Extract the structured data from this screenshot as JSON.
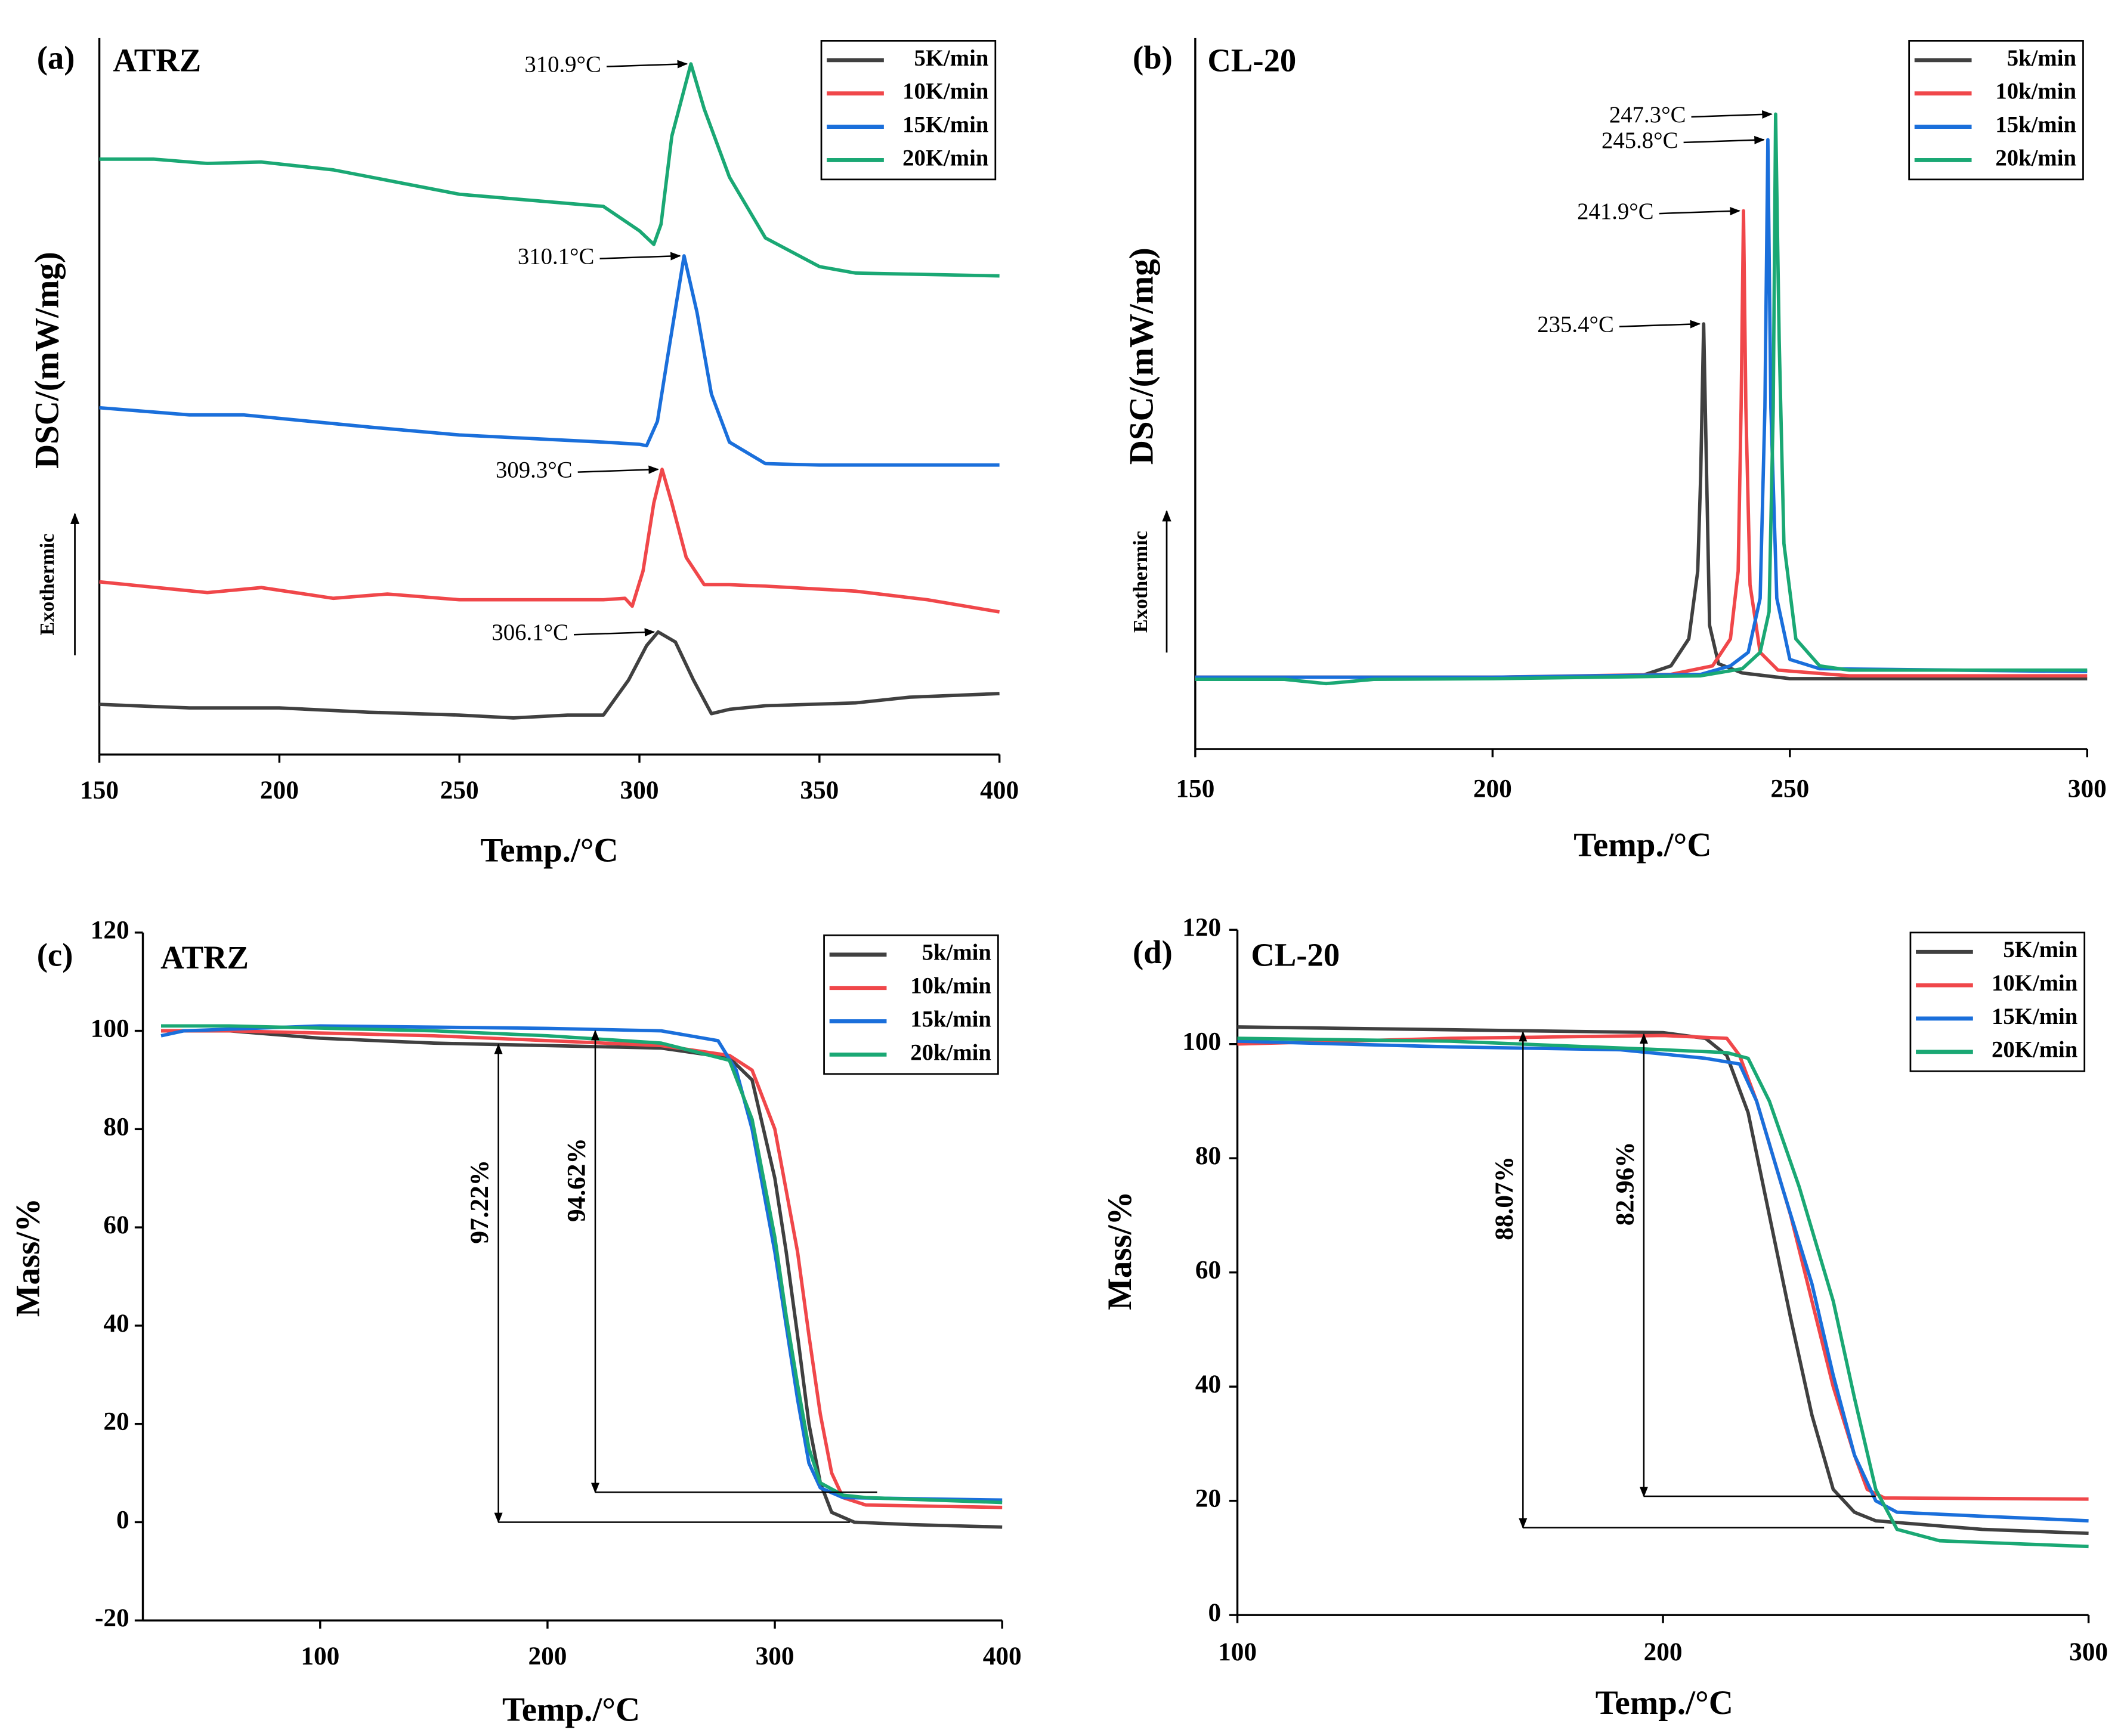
{
  "chart_data": [
    {
      "type": "line",
      "panel": "(a)",
      "title": "ATRZ",
      "xlabel": "Temp./°C",
      "ylabel": "DSC/(mW/mg)",
      "side_note": "Exothermic",
      "xlim": [
        150,
        400
      ],
      "xticks": [
        150,
        200,
        250,
        300,
        350,
        400
      ],
      "ylim": [
        0,
        100
      ],
      "legend": "upper right",
      "series": [
        {
          "name": "5K/min",
          "color": "#404040",
          "x": [
            150,
            175,
            200,
            225,
            250,
            265,
            280,
            290,
            297,
            302,
            305.2,
            310,
            315,
            320,
            325,
            335,
            360,
            375,
            400
          ],
          "values": [
            7.0,
            6.5,
            6.5,
            5.9,
            5.5,
            5.1,
            5.5,
            5.5,
            10.4,
            15.2,
            17.1,
            15.7,
            10.4,
            5.7,
            6.3,
            6.8,
            7.2,
            8.0,
            8.5
          ]
        },
        {
          "name": "10K/min",
          "color": "#f0474a",
          "x": [
            150,
            170,
            180,
            195,
            215,
            230,
            250,
            290,
            296,
            298,
            301,
            304,
            306.3,
            309,
            313,
            318,
            325,
            335,
            360,
            380,
            400
          ],
          "values": [
            24.1,
            23.1,
            22.6,
            23.3,
            21.8,
            22.4,
            21.6,
            21.6,
            21.8,
            20.7,
            25.6,
            35.1,
            39.8,
            35.1,
            27.5,
            23.7,
            23.7,
            23.5,
            22.8,
            21.6,
            19.9
          ]
        },
        {
          "name": "15K/min",
          "color": "#1a6fdb",
          "x": [
            150,
            175,
            190,
            225,
            250,
            290,
            300,
            302,
            305,
            308,
            312.4,
            316,
            320,
            325,
            335,
            350,
            400
          ],
          "values": [
            48.4,
            47.4,
            47.4,
            45.7,
            44.6,
            43.6,
            43.3,
            43.1,
            46.5,
            56.0,
            69.6,
            61.7,
            50.3,
            43.6,
            40.6,
            40.4,
            40.4
          ]
        },
        {
          "name": "20K/min",
          "color": "#1aa874",
          "x": [
            150,
            165,
            180,
            195,
            215,
            250,
            290,
            300,
            304,
            306,
            309,
            314.3,
            318,
            325,
            335,
            350,
            360,
            400
          ],
          "values": [
            83.1,
            83.1,
            82.5,
            82.7,
            81.6,
            78.2,
            76.5,
            73.1,
            71.2,
            74.0,
            86.3,
            96.4,
            90.1,
            80.6,
            72.1,
            68.1,
            67.2,
            66.8
          ]
        }
      ],
      "annotations": [
        {
          "text": "310.9°C",
          "x": 314.3,
          "y": 96.4
        },
        {
          "text": "310.1°C",
          "x": 312.4,
          "y": 69.6
        },
        {
          "text": "309.3°C",
          "x": 306.3,
          "y": 39.8
        },
        {
          "text": "306.1°C",
          "x": 305.2,
          "y": 17.1
        }
      ]
    },
    {
      "type": "line",
      "panel": "(b)",
      "title": "CL-20",
      "xlabel": "Temp./°C",
      "ylabel": "DSC/(mW/mg)",
      "side_note": "Exothermic",
      "xlim": [
        150,
        300
      ],
      "xticks": [
        150,
        200,
        250,
        300
      ],
      "ylim": [
        0,
        100
      ],
      "legend": "upper right",
      "series": [
        {
          "name": "5k/min",
          "color": "#404040",
          "x": [
            150,
            200,
            225,
            230,
            233,
            234.5,
            235,
            235.5,
            236,
            236.5,
            238,
            242,
            250,
            300
          ],
          "values": [
            10.1,
            10.1,
            10.3,
            11.7,
            15.5,
            25.0,
            38.4,
            59.8,
            38.4,
            17.4,
            12.0,
            10.7,
            9.9,
            9.9
          ]
        },
        {
          "name": "10k/min",
          "color": "#f0474a",
          "x": [
            150,
            200,
            230,
            237,
            240,
            241.3,
            241.8,
            242.2,
            242.6,
            243.3,
            245,
            248,
            260,
            300
          ],
          "values": [
            10.1,
            10.1,
            10.5,
            11.7,
            15.5,
            25.0,
            48.0,
            75.7,
            48.0,
            23.1,
            13.6,
            11.1,
            10.3,
            10.3
          ]
        },
        {
          "name": "15k/min",
          "color": "#1a6fdb",
          "x": [
            150,
            200,
            235,
            240,
            243,
            245,
            245.8,
            246.3,
            246.8,
            247.8,
            250,
            255,
            300
          ],
          "values": [
            10.1,
            10.1,
            10.5,
            11.7,
            13.6,
            21.2,
            48.0,
            85.7,
            48.0,
            21.2,
            12.6,
            11.3,
            10.9
          ]
        },
        {
          "name": "20k/min",
          "color": "#1aa874",
          "x": [
            150,
            165,
            172,
            180,
            200,
            235,
            242,
            245,
            246.5,
            247.2,
            247.6,
            248.2,
            249,
            251,
            255,
            260,
            300
          ],
          "values": [
            9.8,
            9.8,
            9.2,
            9.8,
            9.9,
            10.3,
            11.3,
            13.6,
            19.3,
            48.0,
            89.3,
            57.6,
            28.9,
            15.5,
            11.7,
            11.1,
            11.1
          ]
        }
      ],
      "annotations": [
        {
          "text": "247.3°C",
          "x": 247.6,
          "y": 89.3
        },
        {
          "text": "245.8°C",
          "x": 246.3,
          "y": 85.7
        },
        {
          "text": "241.9°C",
          "x": 242.2,
          "y": 75.7
        },
        {
          "text": "235.4°C",
          "x": 235.5,
          "y": 59.8
        }
      ]
    },
    {
      "type": "line",
      "panel": "(c)",
      "title": "ATRZ",
      "xlabel": "Temp./°C",
      "ylabel": "Mass/%",
      "xlim": [
        22,
        400
      ],
      "xticks": [
        100,
        200,
        300,
        400
      ],
      "ylim": [
        -20,
        120
      ],
      "yticks": [
        -20,
        0,
        20,
        40,
        60,
        80,
        100,
        120
      ],
      "legend": "upper right",
      "series": [
        {
          "name": "5k/min",
          "color": "#404040",
          "x": [
            30,
            60,
            100,
            150,
            200,
            250,
            280,
            290,
            300,
            305,
            310,
            315,
            320,
            325,
            335,
            360,
            400
          ],
          "values": [
            100,
            100,
            98.5,
            97.5,
            97,
            96.5,
            94.5,
            90,
            70,
            55,
            38,
            20,
            8,
            2,
            0,
            -0.5,
            -1
          ]
        },
        {
          "name": "10k/min",
          "color": "#f0474a",
          "x": [
            30,
            60,
            150,
            200,
            250,
            280,
            290,
            300,
            310,
            315,
            320,
            325,
            330,
            340,
            400
          ],
          "values": [
            100,
            100,
            99,
            98,
            97,
            95,
            92,
            80,
            55,
            38,
            22,
            10,
            5,
            3.5,
            3
          ]
        },
        {
          "name": "15k/min",
          "color": "#1a6fdb",
          "x": [
            30,
            40,
            100,
            200,
            250,
            275,
            283,
            290,
            300,
            305,
            310,
            315,
            320,
            330,
            400
          ],
          "values": [
            99,
            100,
            101,
            100.5,
            100,
            98,
            92,
            80,
            55,
            40,
            25,
            12,
            7,
            5,
            4.5
          ]
        },
        {
          "name": "20k/min",
          "color": "#1aa874",
          "x": [
            30,
            60,
            150,
            200,
            250,
            280,
            290,
            300,
            305,
            310,
            315,
            320,
            330,
            340,
            400
          ],
          "values": [
            101,
            101,
            100,
            99,
            97.5,
            94,
            82,
            58,
            42,
            28,
            15,
            8,
            5.5,
            5,
            4
          ]
        }
      ],
      "annotations": [
        {
          "text": "97.22%",
          "x": 178.4,
          "y_from": 0,
          "y_to": 97.2,
          "x_end": 333
        },
        {
          "text": "94.62%",
          "x": 221,
          "y_from": 6.1,
          "y_to": 100,
          "x_end": 345
        }
      ]
    },
    {
      "type": "line",
      "panel": "(d)",
      "title": "CL-20",
      "xlabel": "Temp./°C",
      "ylabel": "Mass/%",
      "xlim": [
        100,
        300
      ],
      "xticks": [
        100,
        200,
        300
      ],
      "ylim": [
        0,
        120
      ],
      "yticks": [
        0,
        20,
        40,
        60,
        80,
        100,
        120
      ],
      "legend": "upper right",
      "series": [
        {
          "name": "5K/min",
          "color": "#404040",
          "x": [
            100,
            150,
            200,
            210,
            215,
            220,
            225,
            230,
            235,
            240,
            245,
            250,
            275,
            300
          ],
          "values": [
            103,
            102.5,
            102,
            101,
            98,
            88,
            70,
            52,
            35,
            22,
            18,
            16.5,
            15,
            14.3
          ]
        },
        {
          "name": "10K/min",
          "color": "#f0474a",
          "x": [
            100,
            150,
            200,
            215,
            218,
            222,
            230,
            235,
            240,
            245,
            248,
            252,
            300
          ],
          "values": [
            100,
            101,
            101.5,
            101,
            98,
            90,
            70,
            55,
            40,
            28,
            22,
            20.5,
            20.3
          ]
        },
        {
          "name": "15K/min",
          "color": "#1a6fdb",
          "x": [
            100,
            150,
            190,
            210,
            218,
            222,
            228,
            235,
            240,
            245,
            250,
            255,
            275,
            300
          ],
          "values": [
            100.5,
            99.5,
            99,
            97.5,
            96.5,
            90,
            75,
            58,
            42,
            28,
            20,
            18,
            17.3,
            16.5
          ]
        },
        {
          "name": "20K/min",
          "color": "#1aa874",
          "x": [
            100,
            150,
            200,
            215,
            220,
            225,
            232,
            240,
            245,
            250,
            255,
            265,
            300
          ],
          "values": [
            101,
            100.5,
            99,
            98.5,
            97.5,
            90,
            75,
            55,
            38,
            22,
            15,
            13,
            12
          ]
        }
      ],
      "annotations": [
        {
          "text": "88.07%",
          "x": 167.1,
          "y_from": 15.3,
          "y_to": 102.1,
          "x_end": 252
        },
        {
          "text": "82.96%",
          "x": 195.5,
          "y_from": 20.8,
          "y_to": 101.7,
          "x_end": 250
        }
      ]
    }
  ]
}
